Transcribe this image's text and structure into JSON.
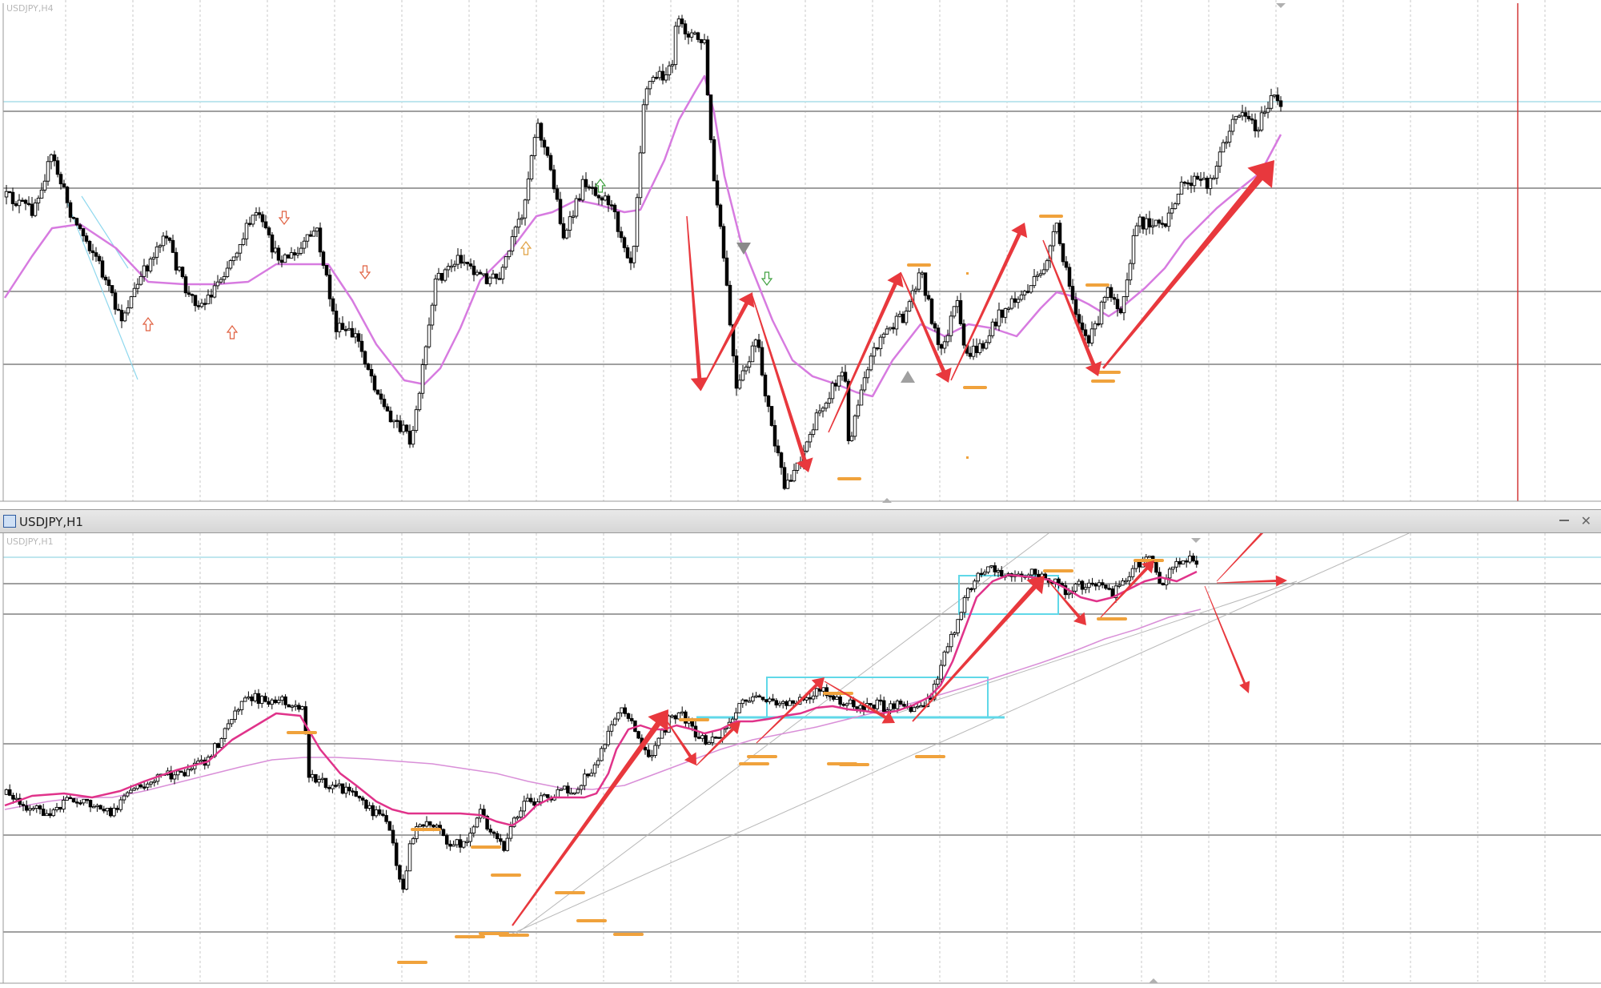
{
  "top_chart": {
    "title": "USDJPY,H4",
    "colors": {
      "bull": "#ffffff",
      "bear": "#000000",
      "ma": "#d77be0",
      "hline": "#a0a0a0",
      "hline_light": "#bfe6ee",
      "arrow": "#e8383d",
      "marker": "#f0a23c",
      "vline_red": "#d43a3a"
    },
    "icons": [
      "up-arrow-icon",
      "down-arrow-icon",
      "triangle-icon"
    ]
  },
  "window": {
    "title": "USDJPY,H1"
  },
  "bottom_chart": {
    "title": "USDJPY,H1",
    "colors": {
      "bull": "#ffffff",
      "bear": "#000000",
      "ma_fast": "#e0338a",
      "ma_slow": "#d98fd8",
      "box": "#60d8e8",
      "arrow": "#e8383d",
      "marker": "#f0a23c"
    }
  }
}
